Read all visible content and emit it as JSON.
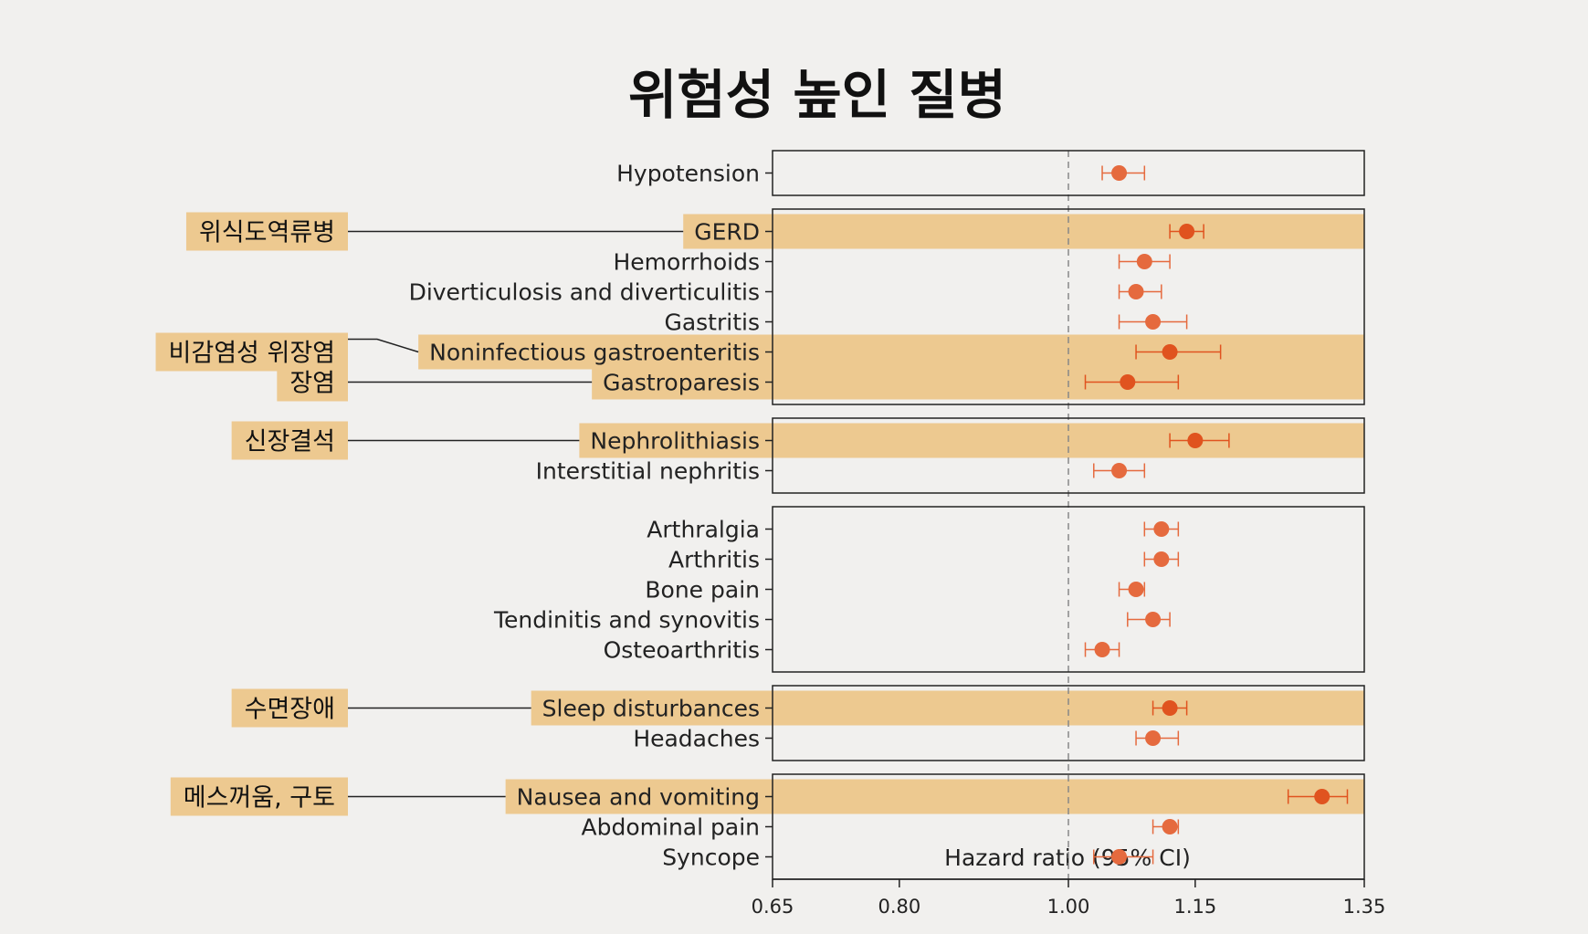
{
  "colors": {
    "background": "#f1f0ee",
    "highlight": "#edc990",
    "point": "#e56a3e",
    "point_highlight": "#e0531f",
    "line": "#222222",
    "reference": "#888888"
  },
  "chart_data": {
    "type": "forest",
    "title": "위험성 높인 질병",
    "xlabel": "Hazard ratio (95% CI)",
    "xlim": [
      0.65,
      1.35
    ],
    "xticks": [
      "0.65",
      "0.80",
      "1.00",
      "1.15",
      "1.35"
    ],
    "reference_line": 1.0,
    "groups": [
      {
        "rows": [
          {
            "label": "Hypotension",
            "hr": 1.06,
            "lo": 1.04,
            "hi": 1.09,
            "highlight": false
          }
        ]
      },
      {
        "rows": [
          {
            "label": "GERD",
            "hr": 1.14,
            "lo": 1.12,
            "hi": 1.16,
            "highlight": true,
            "callout": "위식도역류병"
          },
          {
            "label": "Hemorrhoids",
            "hr": 1.09,
            "lo": 1.06,
            "hi": 1.12,
            "highlight": false
          },
          {
            "label": "Diverticulosis and diverticulitis",
            "hr": 1.08,
            "lo": 1.06,
            "hi": 1.11,
            "highlight": false
          },
          {
            "label": "Gastritis",
            "hr": 1.1,
            "lo": 1.06,
            "hi": 1.14,
            "highlight": false
          },
          {
            "label": "Noninfectious gastroenteritis",
            "hr": 1.12,
            "lo": 1.08,
            "hi": 1.18,
            "highlight": true,
            "callout": "비감염성 위장염"
          },
          {
            "label": "Gastroparesis",
            "hr": 1.07,
            "lo": 1.02,
            "hi": 1.13,
            "highlight": true,
            "callout": "장염"
          }
        ]
      },
      {
        "rows": [
          {
            "label": "Nephrolithiasis",
            "hr": 1.15,
            "lo": 1.12,
            "hi": 1.19,
            "highlight": true,
            "callout": "신장결석"
          },
          {
            "label": "Interstitial nephritis",
            "hr": 1.06,
            "lo": 1.03,
            "hi": 1.09,
            "highlight": false
          }
        ]
      },
      {
        "rows": [
          {
            "label": "Arthralgia",
            "hr": 1.11,
            "lo": 1.09,
            "hi": 1.13,
            "highlight": false
          },
          {
            "label": "Arthritis",
            "hr": 1.11,
            "lo": 1.09,
            "hi": 1.13,
            "highlight": false
          },
          {
            "label": "Bone pain",
            "hr": 1.08,
            "lo": 1.06,
            "hi": 1.09,
            "highlight": false
          },
          {
            "label": "Tendinitis and synovitis",
            "hr": 1.1,
            "lo": 1.07,
            "hi": 1.12,
            "highlight": false
          },
          {
            "label": "Osteoarthritis",
            "hr": 1.04,
            "lo": 1.02,
            "hi": 1.06,
            "highlight": false
          }
        ]
      },
      {
        "rows": [
          {
            "label": "Sleep disturbances",
            "hr": 1.12,
            "lo": 1.1,
            "hi": 1.14,
            "highlight": true,
            "callout": "수면장애"
          },
          {
            "label": "Headaches",
            "hr": 1.1,
            "lo": 1.08,
            "hi": 1.13,
            "highlight": false
          }
        ]
      },
      {
        "rows": [
          {
            "label": "Nausea and vomiting",
            "hr": 1.3,
            "lo": 1.26,
            "hi": 1.33,
            "highlight": true,
            "callout": "메스꺼움, 구토"
          },
          {
            "label": "Abdominal pain",
            "hr": 1.12,
            "lo": 1.1,
            "hi": 1.13,
            "highlight": false
          },
          {
            "label": "Syncope",
            "hr": 1.06,
            "lo": 1.03,
            "hi": 1.1,
            "highlight": false
          }
        ]
      }
    ]
  }
}
